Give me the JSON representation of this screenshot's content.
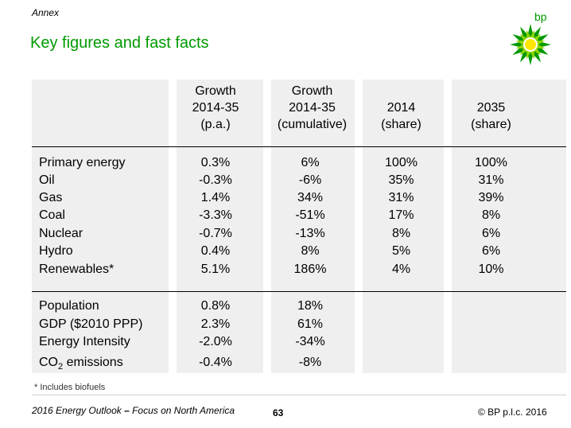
{
  "header": {
    "section": "Annex",
    "title": "Key figures and fast facts",
    "logo_text": "bp"
  },
  "table": {
    "columns": [
      [
        "Growth",
        "2014-35",
        "(p.a.)"
      ],
      [
        "Growth",
        "2014-35",
        "(cumulative)"
      ],
      [
        "2014",
        "(share)"
      ],
      [
        "2035",
        "(share)"
      ]
    ],
    "energy_rows": [
      {
        "label": "Primary energy",
        "values": [
          "0.3%",
          "6%",
          "100%",
          "100%"
        ]
      },
      {
        "label": "Oil",
        "values": [
          "-0.3%",
          "-6%",
          "35%",
          "31%"
        ]
      },
      {
        "label": "Gas",
        "values": [
          "1.4%",
          "34%",
          "31%",
          "39%"
        ]
      },
      {
        "label": "Coal",
        "values": [
          "-3.3%",
          "-51%",
          "17%",
          "8%"
        ]
      },
      {
        "label": "Nuclear",
        "values": [
          "-0.7%",
          "-13%",
          "8%",
          "6%"
        ]
      },
      {
        "label": "Hydro",
        "values": [
          "0.4%",
          "8%",
          "5%",
          "6%"
        ]
      },
      {
        "label": "Renewables*",
        "values": [
          "5.1%",
          "186%",
          "4%",
          "10%"
        ]
      }
    ],
    "macro_rows": [
      {
        "label": "Population",
        "values": [
          "0.8%",
          "18%"
        ]
      },
      {
        "label": "GDP ($2010 PPP)",
        "values": [
          "2.3%",
          "61%"
        ]
      },
      {
        "label": "Energy Intensity",
        "values": [
          "-2.0%",
          "-34%"
        ]
      },
      {
        "label_main": "CO",
        "label_sub": "2",
        "label_rest": " emissions",
        "values": [
          "-0.4%",
          "-8%"
        ]
      }
    ]
  },
  "footnote": "* Includes biofuels",
  "footer": {
    "report": "2016 Energy Outlook",
    "dash": " – ",
    "subtitle": "Focus on North America",
    "page": "63",
    "copyright": "© BP p.l.c. 2016"
  },
  "colors": {
    "brand_green": "#009a00",
    "brand_yellow": "#ffe600",
    "panel": "#efefef"
  }
}
